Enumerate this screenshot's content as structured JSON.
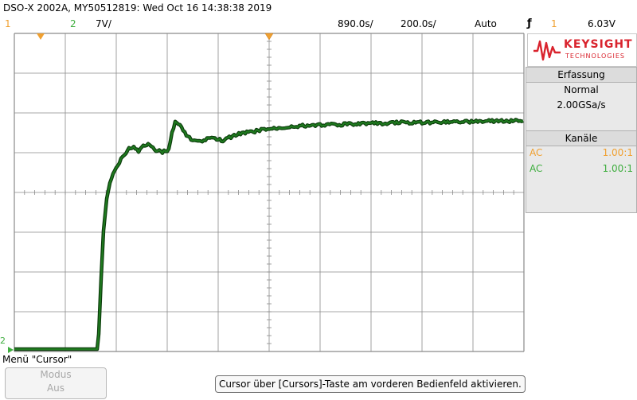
{
  "header": {
    "title": "DSO-X 2002A, MY50512819: Wed Oct 16 14:38:38 2019",
    "ch1_label": "1",
    "ch2_label": "2",
    "ch2_scale": "7V/",
    "time_per_div": "890.0s/",
    "time_position": "200.0s/",
    "trigger_mode": "Auto",
    "trigger_source": "1",
    "trigger_level": "6.03V"
  },
  "logo": {
    "brand": "KEYSIGHT",
    "sub": "TECHNOLOGIES"
  },
  "acquisition": {
    "heading": "Erfassung",
    "mode": "Normal",
    "sample_rate": "2.00GSa/s"
  },
  "channels": {
    "heading": "Kanäle",
    "rows": [
      {
        "coupling": "AC",
        "probe": "1.00:1",
        "color": "#f0a030"
      },
      {
        "coupling": "AC",
        "probe": "1.00:1",
        "color": "#3fae3f"
      }
    ]
  },
  "menu": {
    "title": "Menü \"Cursor\"",
    "soft_key_top": "Modus",
    "soft_key_bottom": "Aus"
  },
  "status_message": "Cursor über [Cursors]-Taste am vorderen Bedienfeld aktivieren.",
  "markers": {
    "ch2_ground": "2"
  },
  "colors": {
    "trace": "#1f7a1f",
    "trace_edge": "#0b3b0b",
    "grid": "#8a8a8a",
    "ch1": "#f0a030",
    "ch2": "#3fae3f"
  }
}
